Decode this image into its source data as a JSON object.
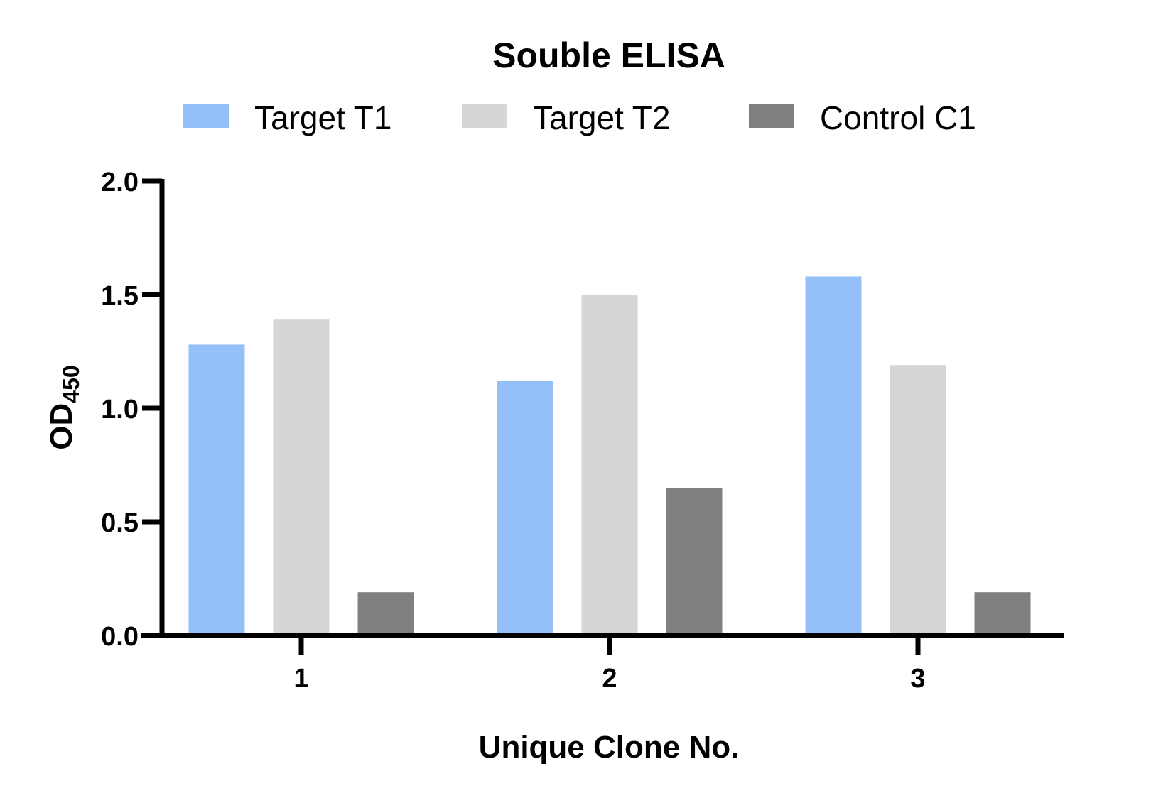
{
  "chart_data": {
    "type": "bar",
    "title": "Souble ELISA",
    "xlabel": "Unique Clone No.",
    "ylabel": "OD",
    "ylabel_subscript": "450",
    "categories": [
      "1",
      "2",
      "3"
    ],
    "series": [
      {
        "name": "Target T1",
        "color": "#94c0f7",
        "values": [
          1.28,
          1.12,
          1.58
        ]
      },
      {
        "name": "Target T2",
        "color": "#d6d6d6",
        "values": [
          1.39,
          1.5,
          1.19
        ]
      },
      {
        "name": "Control C1",
        "color": "#808080",
        "values": [
          0.19,
          0.65,
          0.19
        ]
      }
    ],
    "ylim": [
      0,
      2.0
    ],
    "yticks": [
      "0.0",
      "0.5",
      "1.0",
      "1.5",
      "2.0"
    ],
    "ytick_values": [
      0,
      0.5,
      1.0,
      1.5,
      2.0
    ],
    "grid": false,
    "legend_position": "top"
  }
}
